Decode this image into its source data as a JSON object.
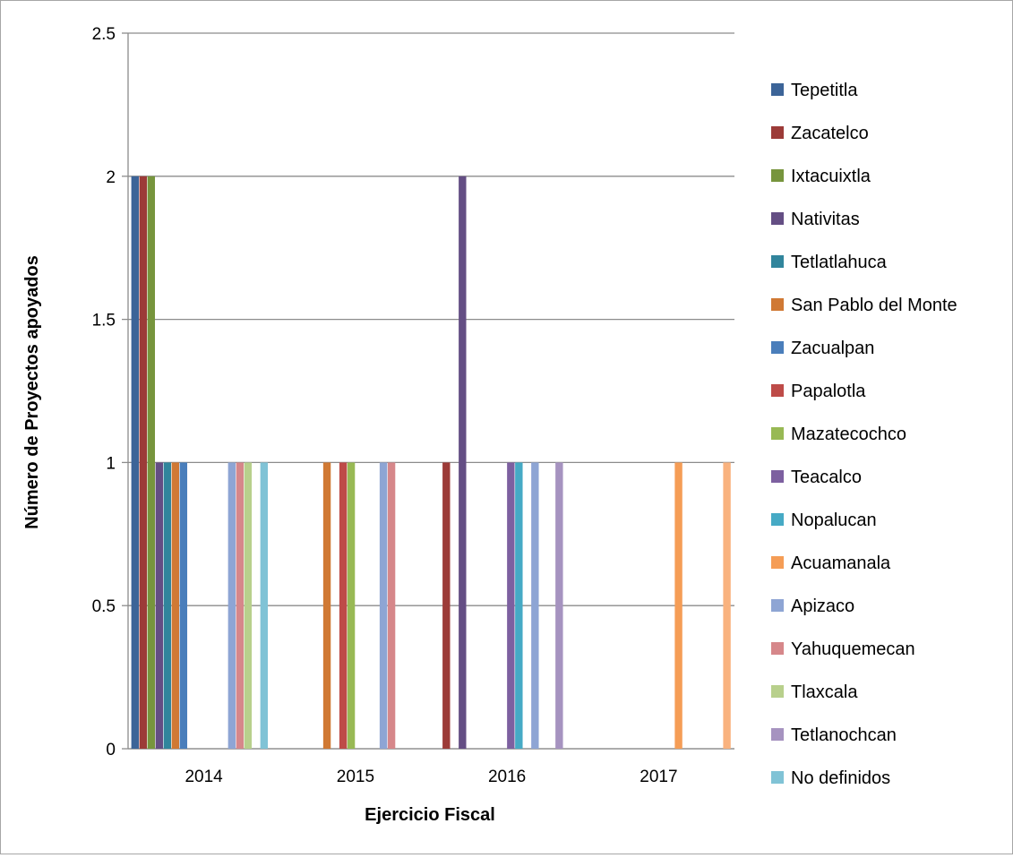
{
  "chart_data": {
    "type": "bar",
    "title": "",
    "xlabel": "Ejercicio Fiscal",
    "ylabel": "Número de Proyectos apoyados",
    "categories": [
      "2014",
      "2015",
      "2016",
      "2017"
    ],
    "ylim": [
      0,
      2.5
    ],
    "yticks": [
      "0",
      "0.5",
      "1",
      "1.5",
      "2",
      "2.5"
    ],
    "grid": true,
    "legend_position": "right",
    "series": [
      {
        "name": "Tepetitla",
        "color": "#3c6498",
        "values": [
          2,
          0,
          0,
          0
        ]
      },
      {
        "name": "Zacatelco",
        "color": "#9c3b38",
        "values": [
          2,
          0,
          1,
          0
        ]
      },
      {
        "name": "Ixtacuixtla",
        "color": "#77953d",
        "values": [
          2,
          0,
          0,
          0
        ]
      },
      {
        "name": "Nativitas",
        "color": "#644e84",
        "values": [
          1,
          0,
          2,
          0
        ]
      },
      {
        "name": "Tetlatlahuca",
        "color": "#31859c",
        "values": [
          1,
          0,
          0,
          0
        ]
      },
      {
        "name": "San Pablo del Monte",
        "color": "#d07934",
        "values": [
          1,
          1,
          0,
          0
        ]
      },
      {
        "name": "Zacualpan",
        "color": "#4a7ebb",
        "values": [
          1,
          0,
          0,
          0
        ]
      },
      {
        "name": "Papalotla",
        "color": "#be4b48",
        "values": [
          0,
          1,
          0,
          0
        ]
      },
      {
        "name": "Mazatecochco",
        "color": "#98b954",
        "values": [
          0,
          1,
          0,
          0
        ]
      },
      {
        "name": "Teacalco",
        "color": "#7d60a0",
        "values": [
          0,
          0,
          1,
          0
        ]
      },
      {
        "name": "Nopalucan",
        "color": "#46aac5",
        "values": [
          0,
          0,
          1,
          0
        ]
      },
      {
        "name": "Acuamanala",
        "color": "#f59d56",
        "values": [
          0,
          0,
          0,
          1
        ]
      },
      {
        "name": "Apizaco",
        "color": "#8ea5d4",
        "values": [
          1,
          1,
          1,
          0
        ]
      },
      {
        "name": "Yahuquemecan",
        "color": "#d6878a",
        "values": [
          1,
          1,
          0,
          0
        ]
      },
      {
        "name": "Tlaxcala",
        "color": "#b8d08c",
        "values": [
          1,
          0,
          0,
          0
        ]
      },
      {
        "name": "Tetlanochcan",
        "color": "#a693c0",
        "values": [
          0,
          0,
          1,
          0
        ]
      },
      {
        "name": "No definidos",
        "color": "#80c3d6",
        "values": [
          1,
          0,
          0,
          0
        ]
      },
      {
        "name": "",
        "color": "#f9b27e",
        "values": [
          0,
          0,
          0,
          1
        ]
      }
    ]
  }
}
